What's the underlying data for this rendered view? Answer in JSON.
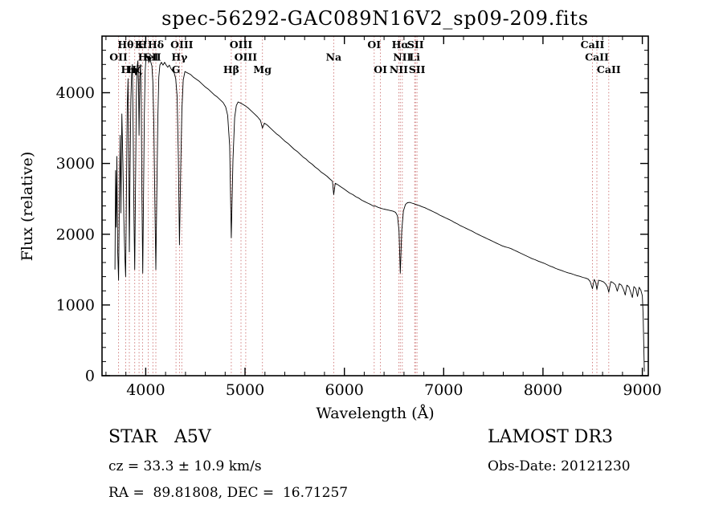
{
  "footer": {
    "class_label": "STAR   A5V",
    "cz": "cz = 33.3 ± 10.9 km/s",
    "radec": "RA =  89.81808, DEC =  16.71257",
    "survey": "LAMOST DR3",
    "obs_date": "Obs-Date: 20121230"
  },
  "chart_data": {
    "type": "line",
    "title": "spec-56292-GAC089N16V2_sp09-209.fits",
    "xlabel": "Wavelength (Å)",
    "ylabel": "Flux (relative)",
    "xlim": [
      3560,
      9060
    ],
    "ylim": [
      0,
      4800
    ],
    "x_ticks": [
      4000,
      5000,
      6000,
      7000,
      8000,
      9000
    ],
    "y_ticks": [
      0,
      1000,
      2000,
      3000,
      4000
    ],
    "x_minor_step": 200,
    "y_minor_step": 200,
    "grid": false,
    "legend": "none",
    "noise_amplitude": 18,
    "colors": {
      "spectrum": "#000000",
      "marker_line": "#c05050",
      "marker_label": "#7a2020",
      "axis": "#000000"
    },
    "line_markers": [
      {
        "label": "Hθ",
        "wl": 3798,
        "row": 0
      },
      {
        "label": "K",
        "wl": 3933,
        "row": 0
      },
      {
        "label": "H",
        "wl": 3968,
        "row": 0
      },
      {
        "label": "Hδ",
        "wl": 4102,
        "row": 0
      },
      {
        "label": "OIII",
        "wl": 4363,
        "row": 0
      },
      {
        "label": "OIII",
        "wl": 4959,
        "row": 0
      },
      {
        "label": "OI",
        "wl": 6300,
        "row": 0
      },
      {
        "label": "Hα",
        "wl": 6563,
        "row": 0
      },
      {
        "label": "SII",
        "wl": 6716,
        "row": 0
      },
      {
        "label": "CaII",
        "wl": 8498,
        "row": 0
      },
      {
        "label": "OII",
        "wl": 3727,
        "row": 1
      },
      {
        "label": "HeI",
        "wl": 4026,
        "row": 1
      },
      {
        "label": "SII",
        "wl": 4072,
        "row": 1
      },
      {
        "label": "Hγ",
        "wl": 4340,
        "row": 1
      },
      {
        "label": "OIII",
        "wl": 5007,
        "row": 1
      },
      {
        "label": "Na",
        "wl": 5893,
        "row": 1
      },
      {
        "label": "NII",
        "wl": 6583,
        "row": 1
      },
      {
        "label": "Li",
        "wl": 6708,
        "row": 1
      },
      {
        "label": "CaII",
        "wl": 8542,
        "row": 1
      },
      {
        "label": "Hη",
        "wl": 3835,
        "row": 2
      },
      {
        "label": "Hζ",
        "wl": 3889,
        "row": 2
      },
      {
        "label": "G",
        "wl": 4305,
        "row": 2
      },
      {
        "label": "Hβ",
        "wl": 4861,
        "row": 2
      },
      {
        "label": "Mg",
        "wl": 5175,
        "row": 2
      },
      {
        "label": "OI",
        "wl": 6363,
        "row": 2
      },
      {
        "label": "NII",
        "wl": 6548,
        "row": 2
      },
      {
        "label": "SII",
        "wl": 6731,
        "row": 2
      },
      {
        "label": "CaII",
        "wl": 8662,
        "row": 2
      }
    ],
    "spectrum": [
      [
        3690,
        1500
      ],
      [
        3697,
        2900
      ],
      [
        3703,
        2100
      ],
      [
        3710,
        3100
      ],
      [
        3717,
        1800
      ],
      [
        3727,
        1350
      ],
      [
        3735,
        2500
      ],
      [
        3743,
        3400
      ],
      [
        3750,
        2300
      ],
      [
        3760,
        3700
      ],
      [
        3770,
        3000
      ],
      [
        3780,
        2200
      ],
      [
        3790,
        1700
      ],
      [
        3798,
        1400
      ],
      [
        3806,
        2600
      ],
      [
        3814,
        3800
      ],
      [
        3822,
        4200
      ],
      [
        3830,
        2800
      ],
      [
        3835,
        1750
      ],
      [
        3842,
        2900
      ],
      [
        3850,
        3900
      ],
      [
        3858,
        4250
      ],
      [
        3866,
        4400
      ],
      [
        3874,
        3400
      ],
      [
        3882,
        2200
      ],
      [
        3889,
        1500
      ],
      [
        3897,
        2700
      ],
      [
        3905,
        3900
      ],
      [
        3913,
        4350
      ],
      [
        3921,
        4450
      ],
      [
        3928,
        4100
      ],
      [
        3933,
        3400
      ],
      [
        3940,
        4200
      ],
      [
        3948,
        4400
      ],
      [
        3955,
        3900
      ],
      [
        3962,
        2500
      ],
      [
        3970,
        1450
      ],
      [
        3978,
        2600
      ],
      [
        3986,
        3700
      ],
      [
        3994,
        4300
      ],
      [
        4002,
        4480
      ],
      [
        4012,
        4520
      ],
      [
        4022,
        4480
      ],
      [
        4032,
        4430
      ],
      [
        4042,
        4470
      ],
      [
        4052,
        4430
      ],
      [
        4062,
        4380
      ],
      [
        4072,
        4150
      ],
      [
        4082,
        3550
      ],
      [
        4092,
        2450
      ],
      [
        4102,
        1500
      ],
      [
        4112,
        2550
      ],
      [
        4122,
        3650
      ],
      [
        4132,
        4220
      ],
      [
        4142,
        4390
      ],
      [
        4158,
        4430
      ],
      [
        4174,
        4390
      ],
      [
        4190,
        4430
      ],
      [
        4206,
        4390
      ],
      [
        4222,
        4360
      ],
      [
        4238,
        4390
      ],
      [
        4254,
        4340
      ],
      [
        4270,
        4310
      ],
      [
        4286,
        4280
      ],
      [
        4302,
        4200
      ],
      [
        4316,
        3950
      ],
      [
        4328,
        3100
      ],
      [
        4340,
        1850
      ],
      [
        4352,
        2900
      ],
      [
        4364,
        3750
      ],
      [
        4378,
        4180
      ],
      [
        4395,
        4300
      ],
      [
        4420,
        4280
      ],
      [
        4450,
        4260
      ],
      [
        4480,
        4220
      ],
      [
        4510,
        4190
      ],
      [
        4540,
        4160
      ],
      [
        4570,
        4120
      ],
      [
        4600,
        4080
      ],
      [
        4630,
        4050
      ],
      [
        4660,
        4010
      ],
      [
        4690,
        3970
      ],
      [
        4720,
        3940
      ],
      [
        4750,
        3900
      ],
      [
        4780,
        3860
      ],
      [
        4805,
        3800
      ],
      [
        4825,
        3680
      ],
      [
        4845,
        3250
      ],
      [
        4861,
        1950
      ],
      [
        4878,
        3050
      ],
      [
        4895,
        3650
      ],
      [
        4912,
        3820
      ],
      [
        4930,
        3870
      ],
      [
        4959,
        3850
      ],
      [
        4985,
        3830
      ],
      [
        5007,
        3810
      ],
      [
        5035,
        3780
      ],
      [
        5065,
        3740
      ],
      [
        5095,
        3700
      ],
      [
        5125,
        3660
      ],
      [
        5155,
        3610
      ],
      [
        5175,
        3500
      ],
      [
        5195,
        3570
      ],
      [
        5225,
        3540
      ],
      [
        5255,
        3500
      ],
      [
        5285,
        3460
      ],
      [
        5315,
        3420
      ],
      [
        5345,
        3390
      ],
      [
        5375,
        3350
      ],
      [
        5405,
        3310
      ],
      [
        5435,
        3280
      ],
      [
        5465,
        3240
      ],
      [
        5495,
        3200
      ],
      [
        5525,
        3170
      ],
      [
        5555,
        3130
      ],
      [
        5585,
        3090
      ],
      [
        5615,
        3060
      ],
      [
        5645,
        3020
      ],
      [
        5675,
        2990
      ],
      [
        5705,
        2950
      ],
      [
        5735,
        2920
      ],
      [
        5765,
        2880
      ],
      [
        5795,
        2850
      ],
      [
        5825,
        2820
      ],
      [
        5855,
        2780
      ],
      [
        5880,
        2750
      ],
      [
        5893,
        2560
      ],
      [
        5908,
        2720
      ],
      [
        5935,
        2700
      ],
      [
        5965,
        2670
      ],
      [
        5995,
        2640
      ],
      [
        6025,
        2610
      ],
      [
        6055,
        2580
      ],
      [
        6085,
        2560
      ],
      [
        6115,
        2530
      ],
      [
        6145,
        2510
      ],
      [
        6175,
        2480
      ],
      [
        6205,
        2460
      ],
      [
        6235,
        2440
      ],
      [
        6265,
        2420
      ],
      [
        6295,
        2395
      ],
      [
        6310,
        2400
      ],
      [
        6340,
        2380
      ],
      [
        6370,
        2365
      ],
      [
        6400,
        2355
      ],
      [
        6430,
        2345
      ],
      [
        6460,
        2335
      ],
      [
        6490,
        2325
      ],
      [
        6515,
        2310
      ],
      [
        6535,
        2260
      ],
      [
        6550,
        2050
      ],
      [
        6563,
        1450
      ],
      [
        6578,
        2050
      ],
      [
        6595,
        2330
      ],
      [
        6615,
        2420
      ],
      [
        6635,
        2445
      ],
      [
        6658,
        2450
      ],
      [
        6680,
        2440
      ],
      [
        6705,
        2430
      ],
      [
        6730,
        2415
      ],
      [
        6755,
        2405
      ],
      [
        6780,
        2390
      ],
      [
        6810,
        2375
      ],
      [
        6840,
        2355
      ],
      [
        6870,
        2335
      ],
      [
        6900,
        2315
      ],
      [
        6930,
        2295
      ],
      [
        6960,
        2270
      ],
      [
        6990,
        2250
      ],
      [
        7020,
        2230
      ],
      [
        7050,
        2210
      ],
      [
        7080,
        2190
      ],
      [
        7110,
        2165
      ],
      [
        7140,
        2145
      ],
      [
        7170,
        2120
      ],
      [
        7200,
        2100
      ],
      [
        7230,
        2080
      ],
      [
        7260,
        2060
      ],
      [
        7290,
        2040
      ],
      [
        7320,
        2015
      ],
      [
        7350,
        1995
      ],
      [
        7380,
        1975
      ],
      [
        7410,
        1955
      ],
      [
        7440,
        1935
      ],
      [
        7470,
        1915
      ],
      [
        7500,
        1895
      ],
      [
        7530,
        1875
      ],
      [
        7560,
        1855
      ],
      [
        7590,
        1835
      ],
      [
        7620,
        1820
      ],
      [
        7650,
        1810
      ],
      [
        7680,
        1795
      ],
      [
        7710,
        1775
      ],
      [
        7740,
        1755
      ],
      [
        7770,
        1735
      ],
      [
        7800,
        1715
      ],
      [
        7830,
        1695
      ],
      [
        7860,
        1675
      ],
      [
        7890,
        1655
      ],
      [
        7920,
        1640
      ],
      [
        7950,
        1620
      ],
      [
        7980,
        1605
      ],
      [
        8010,
        1590
      ],
      [
        8040,
        1570
      ],
      [
        8070,
        1550
      ],
      [
        8100,
        1535
      ],
      [
        8130,
        1515
      ],
      [
        8160,
        1500
      ],
      [
        8190,
        1485
      ],
      [
        8220,
        1470
      ],
      [
        8250,
        1455
      ],
      [
        8280,
        1445
      ],
      [
        8310,
        1430
      ],
      [
        8340,
        1415
      ],
      [
        8370,
        1405
      ],
      [
        8400,
        1390
      ],
      [
        8430,
        1380
      ],
      [
        8455,
        1365
      ],
      [
        8475,
        1330
      ],
      [
        8498,
        1230
      ],
      [
        8516,
        1360
      ],
      [
        8530,
        1320
      ],
      [
        8542,
        1220
      ],
      [
        8560,
        1350
      ],
      [
        8585,
        1340
      ],
      [
        8610,
        1325
      ],
      [
        8632,
        1295
      ],
      [
        8650,
        1250
      ],
      [
        8662,
        1180
      ],
      [
        8682,
        1330
      ],
      [
        8705,
        1315
      ],
      [
        8728,
        1285
      ],
      [
        8748,
        1195
      ],
      [
        8768,
        1300
      ],
      [
        8790,
        1280
      ],
      [
        8812,
        1215
      ],
      [
        8828,
        1140
      ],
      [
        8845,
        1280
      ],
      [
        8865,
        1255
      ],
      [
        8885,
        1170
      ],
      [
        8900,
        1105
      ],
      [
        8915,
        1260
      ],
      [
        8935,
        1230
      ],
      [
        8952,
        1120
      ],
      [
        8968,
        1250
      ],
      [
        8985,
        1210
      ],
      [
        9000,
        1130
      ],
      [
        9008,
        850
      ],
      [
        9015,
        420
      ],
      [
        9020,
        60
      ]
    ]
  }
}
